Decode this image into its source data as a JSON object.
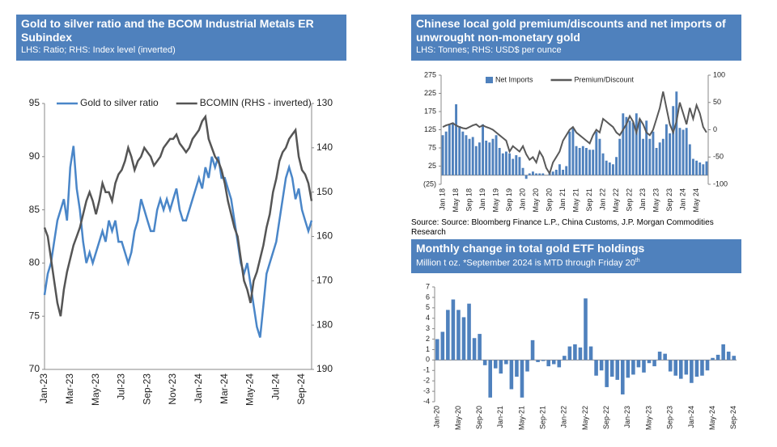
{
  "chart_data": [
    {
      "type": "line",
      "title": "Gold to silver ratio and the BCOM Industrial Metals ER Subindex",
      "subtitle": "LHS: Ratio; RHS: Index level (inverted)",
      "categories": [
        "Jan-23",
        null,
        null,
        null,
        null,
        null,
        null,
        null,
        "Mar-23",
        null,
        null,
        null,
        null,
        null,
        null,
        null,
        "May-23",
        null,
        null,
        null,
        null,
        null,
        null,
        null,
        "Jul-23",
        null,
        null,
        null,
        null,
        null,
        null,
        null,
        "Sep-23",
        null,
        null,
        null,
        null,
        null,
        null,
        null,
        "Nov-23",
        null,
        null,
        null,
        null,
        null,
        null,
        null,
        "Jan-24",
        null,
        null,
        null,
        null,
        null,
        null,
        null,
        "Mar-24",
        null,
        null,
        null,
        null,
        null,
        null,
        null,
        "May-24",
        null,
        null,
        null,
        null,
        null,
        null,
        null,
        "Jul-24",
        null,
        null,
        null,
        null,
        null,
        null,
        null,
        "Sep-24",
        null,
        null,
        null
      ],
      "series": [
        {
          "name": "Gold to silver ratio",
          "color": "#4a86c8",
          "values": [
            77,
            79,
            80,
            82,
            84,
            85,
            86,
            84,
            89,
            91,
            87,
            85,
            82,
            80,
            81,
            80,
            81,
            82,
            83,
            82,
            84,
            83,
            84,
            82,
            82,
            81,
            80,
            81,
            83,
            84,
            86,
            85,
            84,
            83,
            83,
            85,
            86,
            85,
            86,
            85,
            86,
            87,
            85,
            84,
            84,
            85,
            86,
            87,
            88,
            87,
            89,
            88,
            90,
            89,
            90,
            88,
            88,
            87,
            86,
            84,
            82,
            80,
            79,
            80,
            78,
            76,
            74,
            73,
            76,
            79,
            80,
            81,
            82,
            84,
            86,
            88,
            89,
            88,
            86,
            87,
            85,
            84,
            83,
            84
          ]
        },
        {
          "name": "BCOMIN (RHS - inverted)",
          "color": "#555555",
          "axis": "y2",
          "values": [
            158,
            160,
            165,
            170,
            175,
            178,
            172,
            168,
            165,
            162,
            160,
            158,
            155,
            152,
            150,
            152,
            155,
            152,
            148,
            150,
            150,
            152,
            148,
            146,
            145,
            143,
            140,
            142,
            145,
            143,
            142,
            140,
            141,
            142,
            144,
            143,
            142,
            140,
            139,
            138,
            138,
            137,
            139,
            140,
            141,
            140,
            138,
            137,
            136,
            134,
            133,
            138,
            140,
            142,
            143,
            145,
            148,
            152,
            155,
            158,
            160,
            165,
            170,
            172,
            175,
            170,
            168,
            165,
            162,
            158,
            155,
            150,
            147,
            143,
            141,
            140,
            138,
            137,
            136,
            142,
            145,
            146,
            148,
            152
          ]
        }
      ],
      "ylim": [
        70,
        95
      ],
      "yticks": [
        70,
        75,
        80,
        85,
        90,
        95
      ],
      "y2lim": [
        190,
        130
      ],
      "y2ticks": [
        190,
        180,
        170,
        160,
        150,
        140,
        130
      ]
    },
    {
      "type": "bar",
      "title": "Chinese local gold premium/discounts and net imports of unwrought non-monetary gold",
      "subtitle": "LHS: Tonnes; RHS: USD$ per ounce",
      "source": "Source: Source: Bloomberg Finance L.P., China Customs, J.P. Morgan Commodities Research",
      "categories": [
        "Jan 18",
        null,
        null,
        null,
        "May 18",
        null,
        null,
        null,
        "Sep 18",
        null,
        null,
        null,
        "Jan 19",
        null,
        null,
        null,
        "May 19",
        null,
        null,
        null,
        "Sep 19",
        null,
        null,
        null,
        "Jan 20",
        null,
        null,
        null,
        "May 20",
        null,
        null,
        null,
        "Sep 20",
        null,
        null,
        null,
        "Jan 21",
        null,
        null,
        null,
        "May 21",
        null,
        null,
        null,
        "Sep 21",
        null,
        null,
        null,
        "Jan 22",
        null,
        null,
        null,
        "May 22",
        null,
        null,
        null,
        "Sep 22",
        null,
        null,
        null,
        "Jan 23",
        null,
        null,
        null,
        "May 23",
        null,
        null,
        null,
        "Sep 23",
        null,
        null,
        null,
        "Jan 24",
        null,
        null,
        null,
        "May 24",
        null,
        null,
        null
      ],
      "series": [
        {
          "name": "Net Imports",
          "type": "bar",
          "color": "#4f81bd",
          "values": [
            110,
            120,
            140,
            145,
            195,
            135,
            120,
            110,
            100,
            105,
            80,
            90,
            140,
            95,
            90,
            100,
            110,
            75,
            60,
            65,
            60,
            45,
            55,
            50,
            20,
            -10,
            5,
            10,
            5,
            5,
            5,
            0,
            10,
            10,
            15,
            30,
            15,
            25,
            120,
            130,
            80,
            75,
            80,
            75,
            70,
            70,
            120,
            100,
            60,
            40,
            35,
            30,
            50,
            100,
            170,
            160,
            150,
            145,
            170,
            155,
            100,
            150,
            100,
            120,
            75,
            90,
            100,
            140,
            115,
            190,
            230,
            130,
            125,
            130,
            85,
            45,
            40,
            35,
            30,
            38
          ]
        },
        {
          "name": "Premium/Discount",
          "type": "line",
          "color": "#595959",
          "axis": "y2",
          "values": [
            5,
            8,
            10,
            12,
            8,
            5,
            3,
            2,
            5,
            8,
            10,
            5,
            8,
            5,
            3,
            0,
            -5,
            -10,
            -15,
            -20,
            -40,
            -30,
            -35,
            -40,
            -30,
            -45,
            -55,
            -50,
            -60,
            -40,
            -50,
            -70,
            -80,
            -60,
            -50,
            -40,
            -20,
            -10,
            0,
            5,
            -5,
            -10,
            -15,
            -20,
            -25,
            -10,
            0,
            -5,
            20,
            15,
            10,
            5,
            -5,
            -10,
            0,
            10,
            25,
            15,
            -5,
            20,
            10,
            -5,
            -10,
            0,
            20,
            40,
            70,
            40,
            10,
            -5,
            15,
            50,
            30,
            10,
            40,
            20,
            45,
            30,
            5,
            -5
          ]
        }
      ],
      "ylim": [
        -25,
        275
      ],
      "yticks": [
        {
          "value": -25,
          "label": "(25)"
        },
        25,
        75,
        125,
        175,
        225,
        275
      ],
      "y2lim": [
        -100,
        100
      ],
      "y2ticks": [
        -100,
        -50,
        0,
        50,
        100
      ]
    },
    {
      "type": "bar",
      "title": "Monthly change in total gold ETF holdings",
      "subtitle": "Million t oz. *September 2024 is MTD through Friday 20",
      "subtitle_sup": "th",
      "categories": [
        "Jan-20",
        null,
        null,
        null,
        "May-20",
        null,
        null,
        null,
        "Sep-20",
        null,
        null,
        null,
        "Jan-21",
        null,
        null,
        null,
        "May-21",
        null,
        null,
        null,
        "Sep-21",
        null,
        null,
        null,
        "Jan-22",
        null,
        null,
        null,
        "May-22",
        null,
        null,
        null,
        "Sep-22",
        null,
        null,
        null,
        "Jan-23",
        null,
        null,
        null,
        "May-23",
        null,
        null,
        null,
        "Sep-23",
        null,
        null,
        null,
        "Jan-24",
        null,
        null,
        null,
        "May-24",
        null,
        null,
        null,
        "Sep-24"
      ],
      "values": [
        2.0,
        2.7,
        4.8,
        5.8,
        4.8,
        4.1,
        5.4,
        2.1,
        2.5,
        -0.5,
        -3.6,
        -0.8,
        -1.3,
        -0.4,
        -2.8,
        -1.6,
        -3.6,
        -1.1,
        1.9,
        -0.2,
        -0.1,
        -0.6,
        -0.4,
        -0.7,
        0.4,
        1.3,
        1.5,
        1.2,
        5.9,
        1.3,
        -1.5,
        -1.0,
        -2.6,
        -1.6,
        -1.9,
        -3.3,
        -1.7,
        -1.4,
        -0.7,
        -1.2,
        -0.3,
        -0.6,
        0.8,
        0.6,
        -1.1,
        -1.5,
        -1.8,
        -1.4,
        -2.2,
        -1.6,
        -1.5,
        -1.0,
        0.2,
        0.5,
        1.5,
        0.8,
        0.4
      ],
      "color": "#4f81bd",
      "ylim": [
        -4,
        7
      ],
      "yticks": [
        -4,
        -3,
        -2,
        -1,
        0,
        1,
        2,
        3,
        4,
        5,
        6,
        7
      ]
    }
  ]
}
